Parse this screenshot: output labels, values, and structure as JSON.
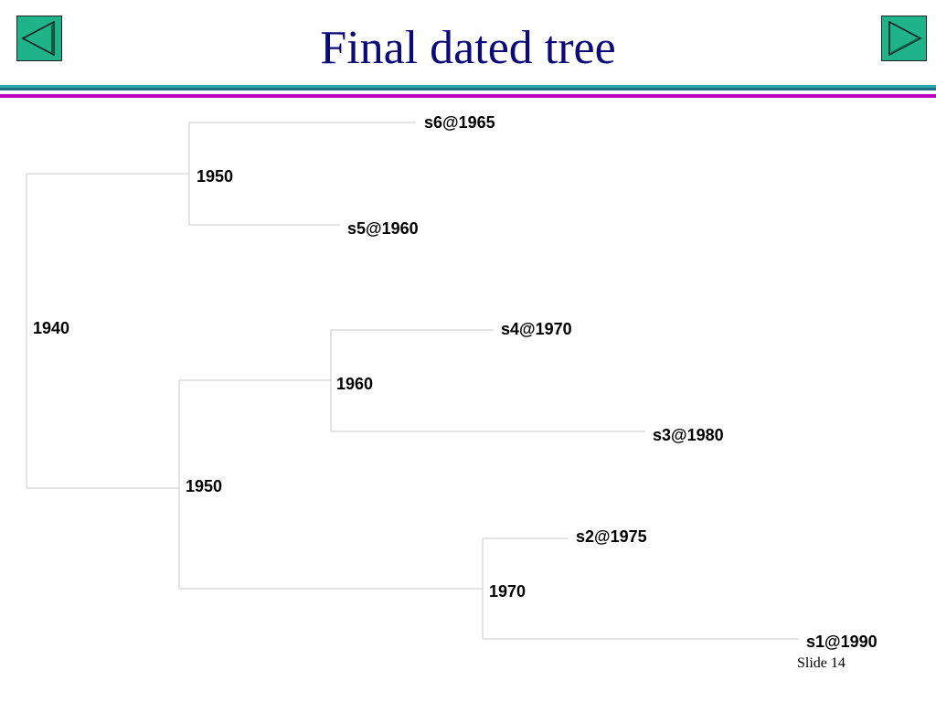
{
  "slide": {
    "title": "Final dated tree",
    "footer": "Slide 14",
    "colors": {
      "title": "#0a0a78",
      "nav_button": "#1fb38a",
      "rule_teal": "#1f6f86",
      "rule_magenta": "#c000c0",
      "branch_line": "#c8c8c8"
    }
  },
  "nav": {
    "prev_icon": "triangle-left-icon",
    "next_icon": "triangle-right-icon"
  },
  "tree": {
    "nodes": {
      "root": "1940",
      "upper": "1950",
      "lower": "1950",
      "mid": "1960",
      "bottom": "1970"
    },
    "leaves": {
      "s6": "s6@1965",
      "s5": "s5@1960",
      "s4": "s4@1970",
      "s3": "s3@1980",
      "s2": "s2@1975",
      "s1": "s1@1990"
    }
  }
}
